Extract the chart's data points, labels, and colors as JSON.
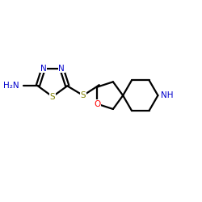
{
  "background_color": "#ffffff",
  "bond_color": "#000000",
  "n_color": "#0000cc",
  "s_color": "#808000",
  "o_color": "#ff0000",
  "nh_color": "#0000cc",
  "nh2_color": "#0000cc",
  "linewidth": 1.6,
  "figsize": [
    2.5,
    2.5
  ],
  "dpi": 100,
  "xlim": [
    0,
    2.5
  ],
  "ylim": [
    0,
    2.5
  ]
}
